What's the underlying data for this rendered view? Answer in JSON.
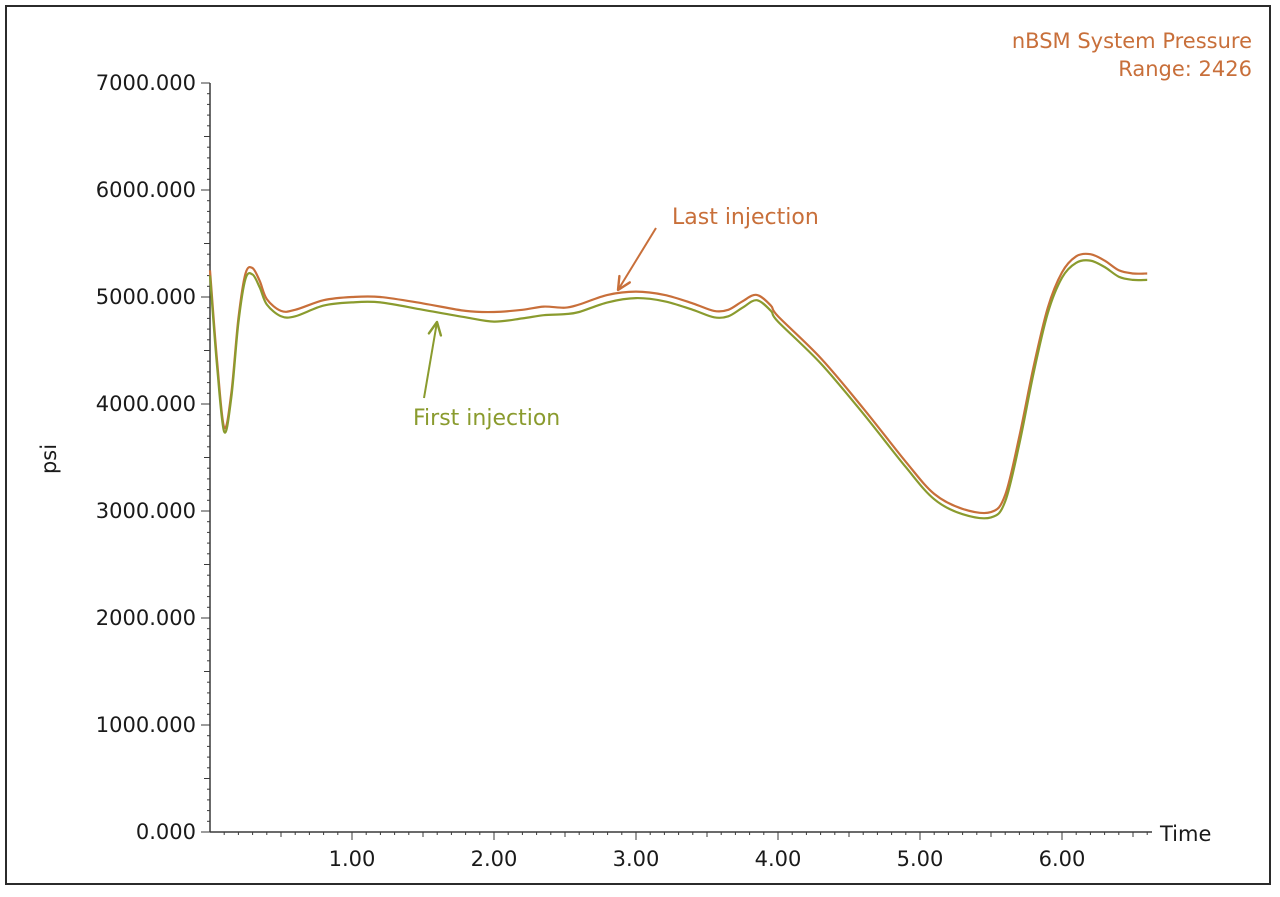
{
  "colors": {
    "last": "#c86f3a",
    "first": "#8a9b2e",
    "axis": "#3a3a3a",
    "text": "#1a1a1a"
  },
  "chart_data": {
    "type": "line",
    "title": "nBSM System Pressure",
    "subtitle": "Range: 2426",
    "xlabel": "Time",
    "ylabel": "psi",
    "xlim": [
      0,
      6.6
    ],
    "ylim": [
      0,
      7000
    ],
    "xticks": [
      "1.00",
      "2.00",
      "3.00",
      "4.00",
      "5.00",
      "6.00"
    ],
    "xtick_values": [
      1,
      2,
      3,
      4,
      5,
      6
    ],
    "yticks": [
      "0.000",
      "1000.000",
      "2000.000",
      "3000.000",
      "4000.000",
      "5000.000",
      "6000.000",
      "7000.000"
    ],
    "ytick_values": [
      0,
      1000,
      2000,
      3000,
      4000,
      5000,
      6000,
      7000
    ],
    "grid": false,
    "series": [
      {
        "name": "Last injection",
        "x": [
          0,
          0.05,
          0.1,
          0.15,
          0.2,
          0.25,
          0.3,
          0.35,
          0.4,
          0.5,
          0.6,
          0.8,
          1.0,
          1.2,
          1.5,
          1.8,
          2.0,
          2.2,
          2.35,
          2.5,
          2.6,
          2.8,
          3.0,
          3.2,
          3.4,
          3.55,
          3.65,
          3.75,
          3.85,
          3.95,
          4.0,
          4.3,
          4.6,
          4.9,
          5.1,
          5.3,
          5.5,
          5.6,
          5.7,
          5.8,
          5.9,
          6.0,
          6.1,
          6.2,
          6.3,
          6.4,
          6.5,
          6.6
        ],
        "y": [
          5250,
          4400,
          3780,
          4100,
          4800,
          5220,
          5270,
          5150,
          4980,
          4870,
          4880,
          4970,
          5000,
          5000,
          4940,
          4870,
          4860,
          4880,
          4910,
          4900,
          4930,
          5020,
          5050,
          5020,
          4940,
          4870,
          4880,
          4960,
          5020,
          4920,
          4820,
          4430,
          3960,
          3460,
          3160,
          3020,
          2990,
          3150,
          3700,
          4350,
          4900,
          5230,
          5380,
          5400,
          5340,
          5250,
          5220,
          5220
        ]
      },
      {
        "name": "First injection",
        "x": [
          0,
          0.05,
          0.1,
          0.15,
          0.2,
          0.25,
          0.3,
          0.35,
          0.4,
          0.5,
          0.6,
          0.8,
          1.0,
          1.2,
          1.5,
          1.8,
          2.0,
          2.2,
          2.35,
          2.5,
          2.6,
          2.8,
          3.0,
          3.2,
          3.4,
          3.55,
          3.65,
          3.75,
          3.85,
          3.95,
          4.0,
          4.3,
          4.6,
          4.9,
          5.1,
          5.3,
          5.5,
          5.6,
          5.7,
          5.8,
          5.9,
          6.0,
          6.1,
          6.2,
          6.3,
          6.4,
          6.5,
          6.6
        ],
        "y": [
          5200,
          4350,
          3740,
          4060,
          4760,
          5170,
          5210,
          5090,
          4930,
          4820,
          4820,
          4920,
          4950,
          4950,
          4880,
          4810,
          4770,
          4800,
          4830,
          4840,
          4860,
          4950,
          4990,
          4960,
          4880,
          4810,
          4820,
          4900,
          4970,
          4870,
          4770,
          4380,
          3910,
          3410,
          3110,
          2970,
          2940,
          3090,
          3630,
          4290,
          4850,
          5180,
          5320,
          5340,
          5280,
          5190,
          5160,
          5160
        ]
      }
    ],
    "annotations": [
      {
        "text": "Last injection",
        "series": "Last injection",
        "x": 2.85,
        "y": 5050
      },
      {
        "text": "First injection",
        "series": "First injection",
        "x": 1.65,
        "y": 4850
      }
    ]
  }
}
